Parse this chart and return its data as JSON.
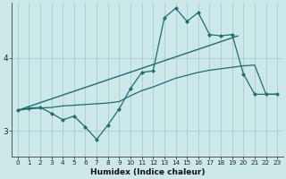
{
  "xlabel": "Humidex (Indice chaleur)",
  "xlim": [
    -0.5,
    23.5
  ],
  "ylim": [
    2.65,
    4.75
  ],
  "bg_color": "#cce8e8",
  "line_color": "#1a7070",
  "grid_color": "#aacccc",
  "x_ticks": [
    0,
    1,
    2,
    3,
    4,
    5,
    6,
    7,
    8,
    9,
    10,
    11,
    12,
    13,
    14,
    15,
    16,
    17,
    18,
    19,
    20,
    21,
    22,
    23
  ],
  "y_ticks": [
    3,
    4
  ],
  "jagged_x": [
    0,
    1,
    2,
    3,
    4,
    5,
    6,
    7,
    8,
    9,
    10,
    11,
    12,
    13,
    14,
    15,
    16,
    17,
    18,
    19,
    20,
    21,
    22,
    23
  ],
  "jagged_y": [
    3.28,
    3.31,
    3.32,
    3.24,
    3.15,
    3.2,
    3.05,
    2.88,
    3.08,
    3.3,
    3.58,
    3.8,
    3.82,
    4.55,
    4.68,
    4.5,
    4.62,
    4.32,
    4.3,
    4.32,
    3.78,
    3.5,
    3.5,
    3.5
  ],
  "smooth_x": [
    0,
    1,
    2,
    3,
    4,
    5,
    6,
    7,
    8,
    9,
    10,
    11,
    12,
    13,
    14,
    15,
    16,
    17,
    18,
    19,
    20,
    21,
    22,
    23
  ],
  "smooth_y": [
    3.28,
    3.3,
    3.31,
    3.32,
    3.34,
    3.35,
    3.36,
    3.37,
    3.38,
    3.4,
    3.48,
    3.55,
    3.6,
    3.66,
    3.72,
    3.76,
    3.8,
    3.83,
    3.85,
    3.87,
    3.89,
    3.9,
    3.5,
    3.5
  ],
  "trend_x": [
    0,
    19.5
  ],
  "trend_y": [
    3.28,
    4.3
  ]
}
